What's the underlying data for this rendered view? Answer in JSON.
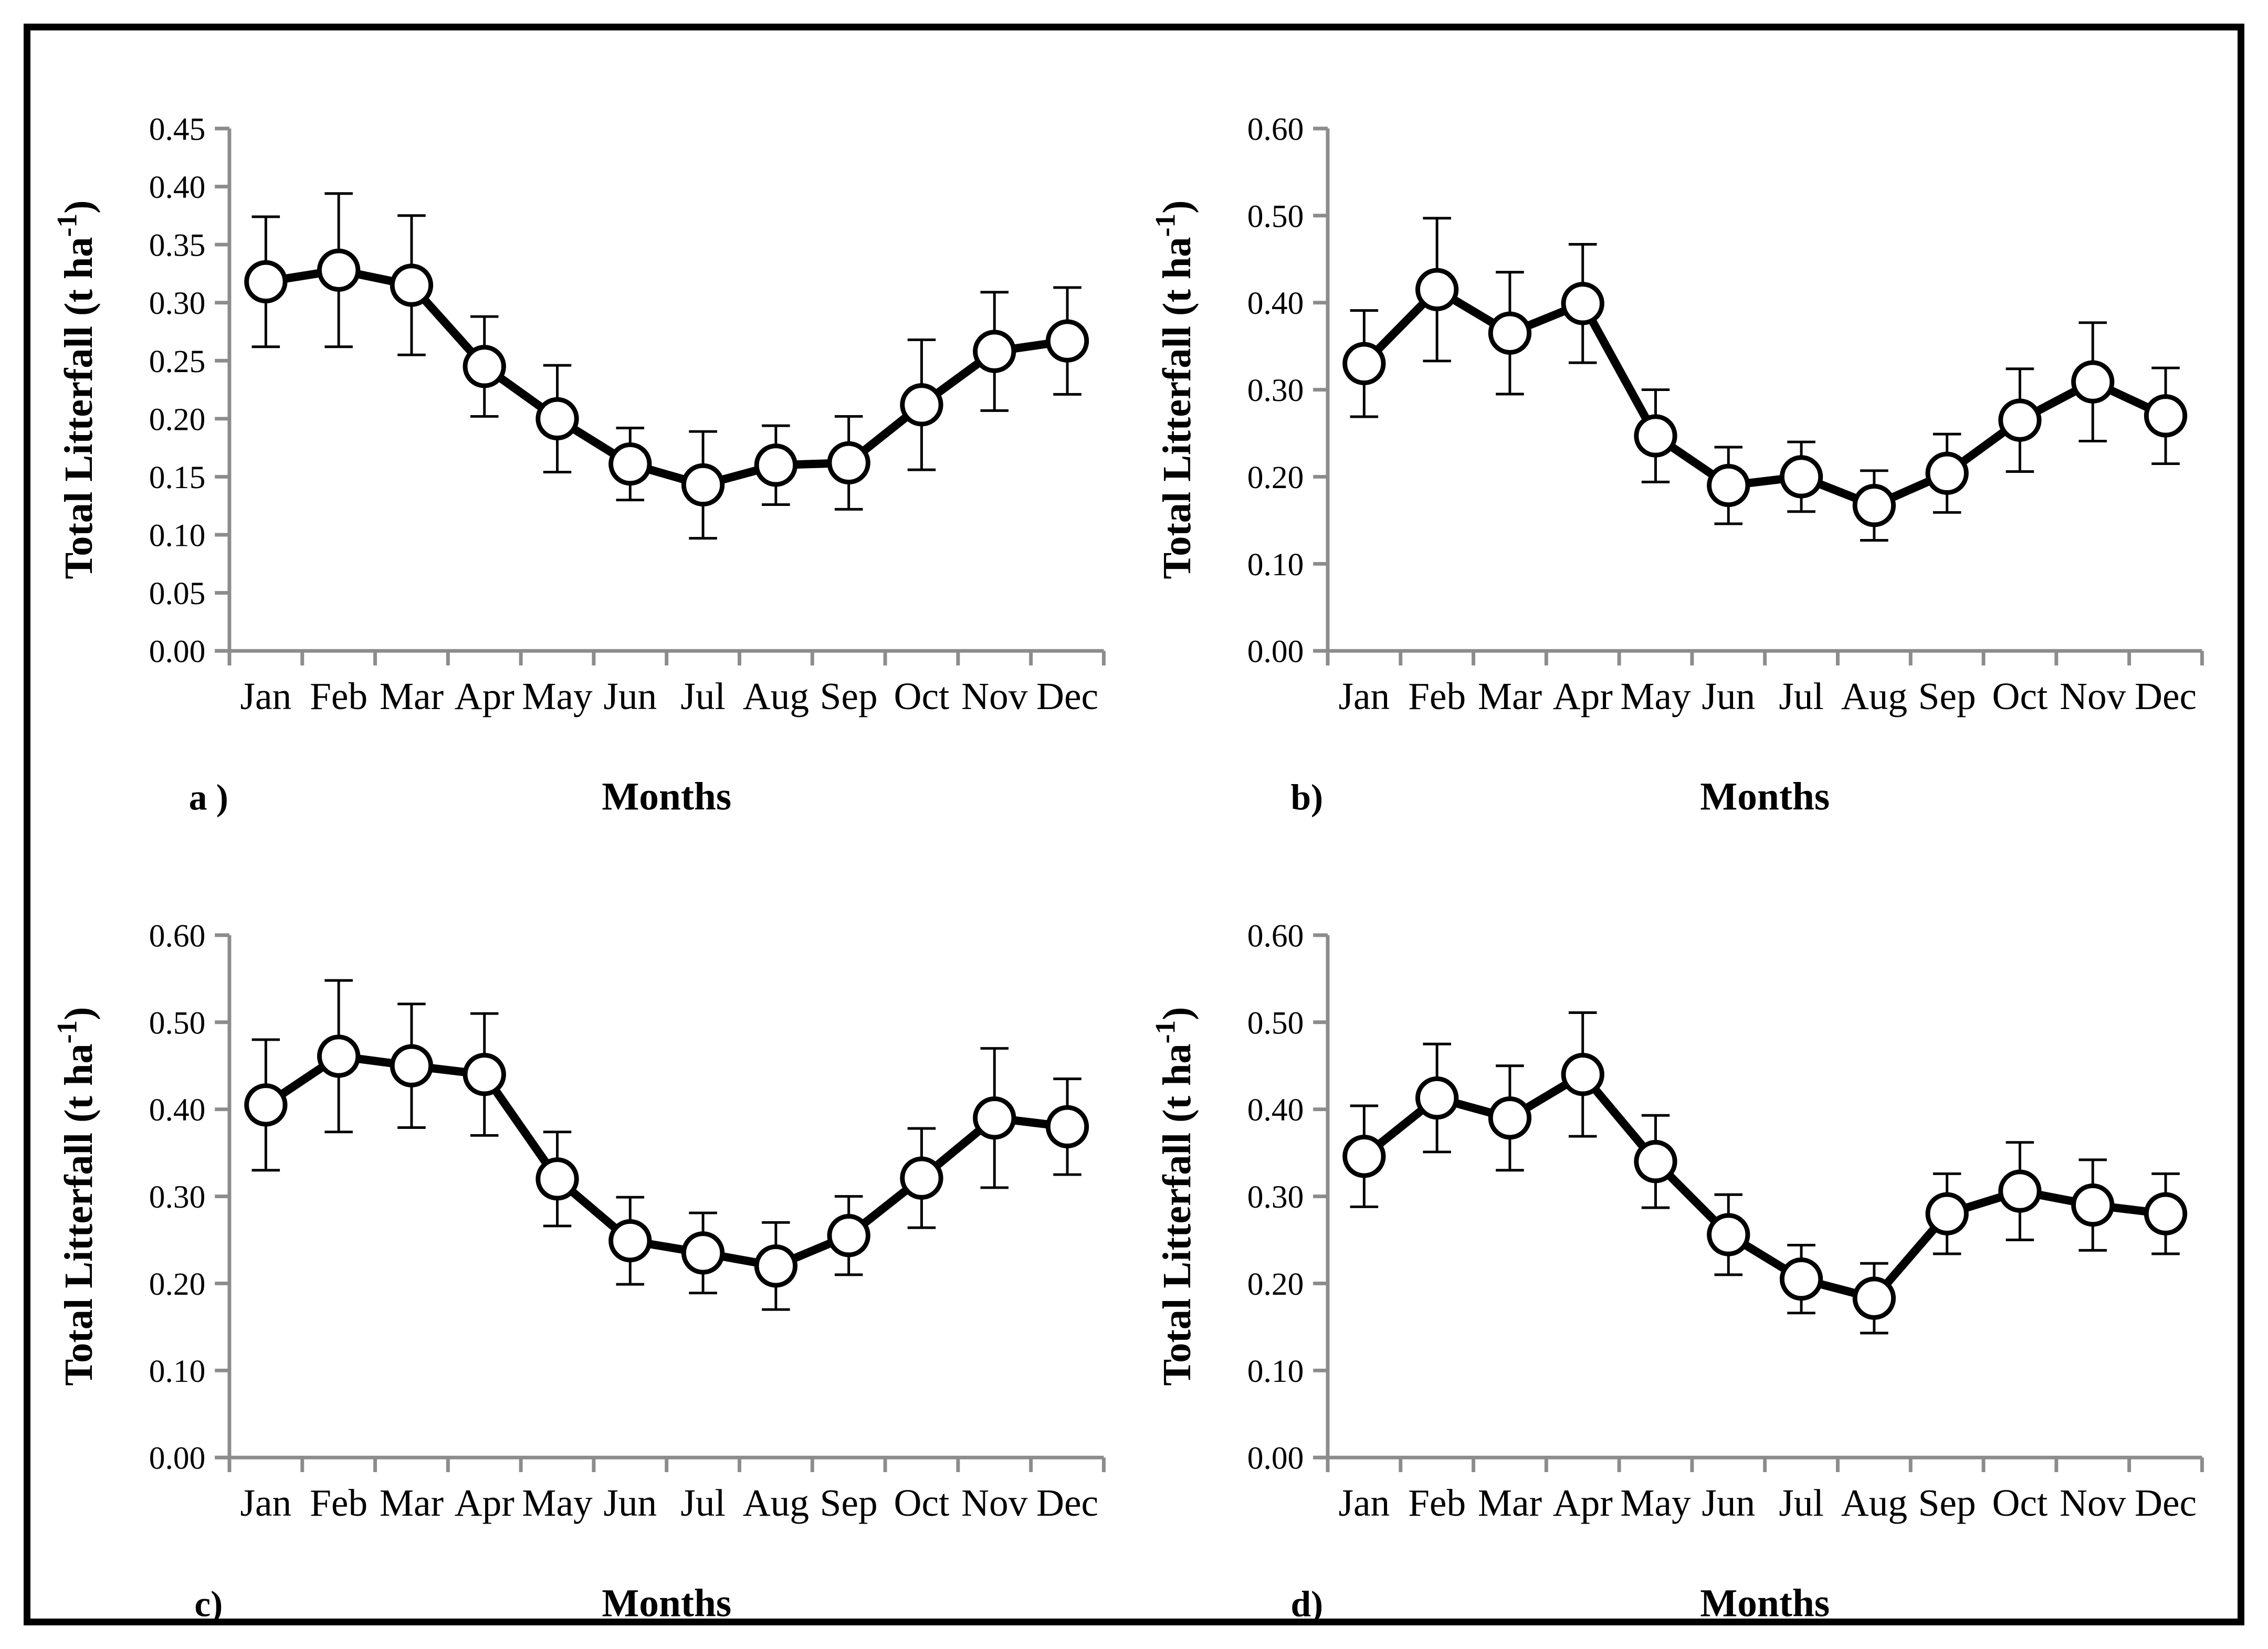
{
  "figure": {
    "ylabel": {
      "prefix": "Total Litterfall (t ha",
      "superscript": "-1",
      "suffix": ")"
    },
    "colors": {
      "axis": "#8c8c8c",
      "line": "#000000",
      "marker_fill": "#ffffff",
      "text": "#000000",
      "frame": "#000000",
      "background": "#ffffff"
    }
  },
  "chart_data": [
    {
      "type": "line",
      "panel_label": "a )",
      "xlabel": "Months",
      "ylabel": "Total Litterfall (t ha-1)",
      "categories": [
        "Jan",
        "Feb",
        "Mar",
        "Apr",
        "May",
        "Jun",
        "Jul",
        "Aug",
        "Sep",
        "Oct",
        "Nov",
        "Dec"
      ],
      "values": [
        0.318,
        0.328,
        0.315,
        0.245,
        0.2,
        0.161,
        0.143,
        0.16,
        0.162,
        0.212,
        0.258,
        0.267
      ],
      "error": [
        0.056,
        0.066,
        0.06,
        0.043,
        0.046,
        0.031,
        0.046,
        0.034,
        0.04,
        0.056,
        0.051,
        0.046
      ],
      "ylim": [
        0,
        0.45
      ],
      "ytick_step": 0.05,
      "ytick_decimals": 2,
      "marker": "open-circle",
      "grid": false,
      "legend": null
    },
    {
      "type": "line",
      "panel_label": "b)",
      "xlabel": "Months",
      "ylabel": "Total Litterfall (t ha-1)",
      "categories": [
        "Jan",
        "Feb",
        "Mar",
        "Apr",
        "May",
        "Jun",
        "Jul",
        "Aug",
        "Sep",
        "Oct",
        "Nov",
        "Dec"
      ],
      "values": [
        0.33,
        0.415,
        0.365,
        0.399,
        0.247,
        0.19,
        0.2,
        0.167,
        0.204,
        0.265,
        0.309,
        0.27
      ],
      "error": [
        0.061,
        0.082,
        0.07,
        0.068,
        0.053,
        0.044,
        0.04,
        0.04,
        0.045,
        0.059,
        0.068,
        0.055
      ],
      "ylim": [
        0,
        0.6
      ],
      "ytick_step": 0.1,
      "ytick_decimals": 2,
      "marker": "open-circle",
      "grid": false,
      "legend": null
    },
    {
      "type": "line",
      "panel_label": "c)",
      "xlabel": "Months",
      "ylabel": "Total Litterfall (t ha-1)",
      "categories": [
        "Jan",
        "Feb",
        "Mar",
        "Apr",
        "May",
        "Jun",
        "Jul",
        "Aug",
        "Sep",
        "Oct",
        "Nov",
        "Dec"
      ],
      "values": [
        0.405,
        0.461,
        0.45,
        0.44,
        0.32,
        0.249,
        0.235,
        0.22,
        0.255,
        0.321,
        0.39,
        0.38
      ],
      "error": [
        0.075,
        0.087,
        0.071,
        0.07,
        0.054,
        0.05,
        0.046,
        0.05,
        0.045,
        0.057,
        0.08,
        0.055
      ],
      "ylim": [
        0,
        0.6
      ],
      "ytick_step": 0.1,
      "ytick_decimals": 2,
      "marker": "open-circle",
      "grid": false,
      "legend": null
    },
    {
      "type": "line",
      "panel_label": "d)",
      "xlabel": "Months",
      "ylabel": "Total Litterfall (t ha-1)",
      "categories": [
        "Jan",
        "Feb",
        "Mar",
        "Apr",
        "May",
        "Jun",
        "Jul",
        "Aug",
        "Sep",
        "Oct",
        "Nov",
        "Dec"
      ],
      "values": [
        0.346,
        0.413,
        0.39,
        0.44,
        0.34,
        0.256,
        0.205,
        0.183,
        0.28,
        0.306,
        0.29,
        0.28
      ],
      "error": [
        0.058,
        0.062,
        0.06,
        0.071,
        0.053,
        0.046,
        0.039,
        0.04,
        0.046,
        0.056,
        0.052,
        0.046
      ],
      "ylim": [
        0,
        0.6
      ],
      "ytick_step": 0.1,
      "ytick_decimals": 2,
      "marker": "open-circle",
      "grid": false,
      "legend": null
    }
  ]
}
